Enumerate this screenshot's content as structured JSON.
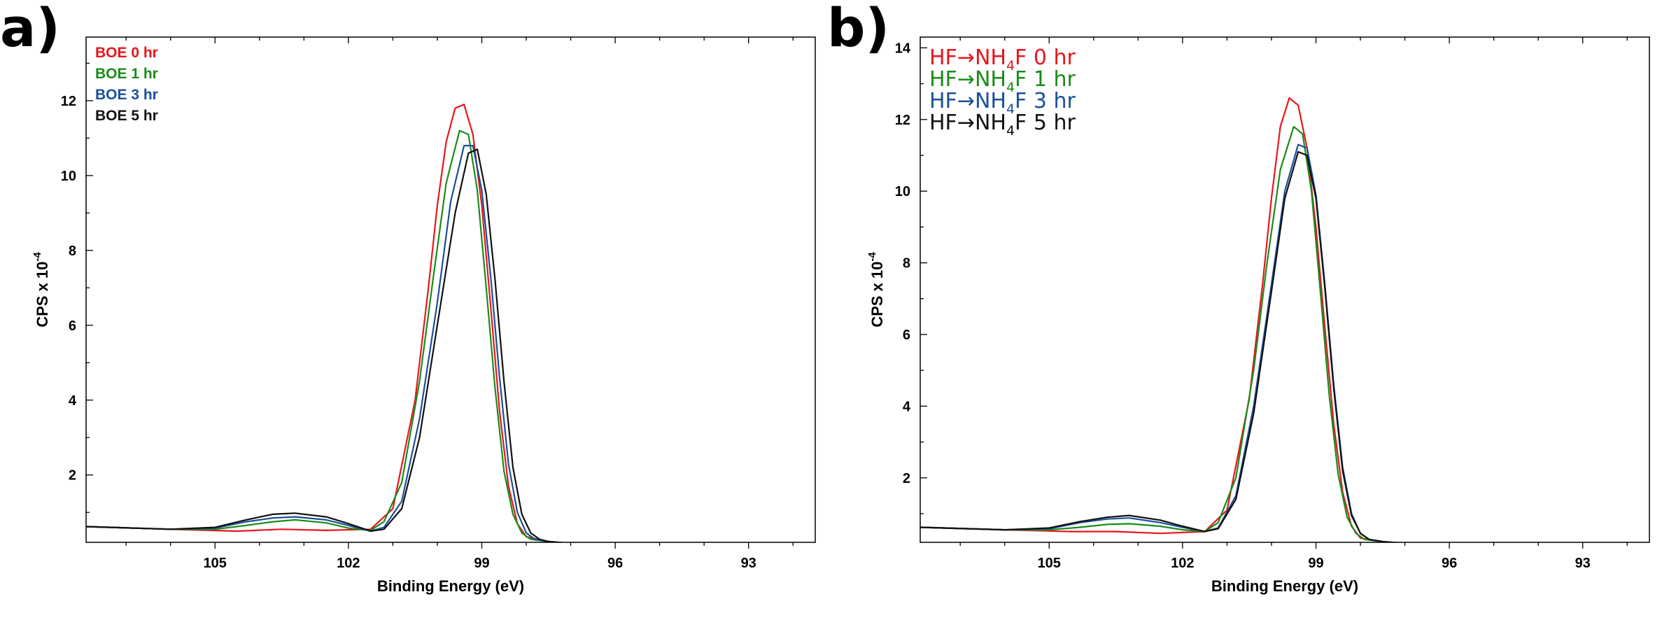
{
  "colors": {
    "red": "#e8161c",
    "green": "#1a8c1a",
    "blue": "#1b4f9c",
    "black": "#111111"
  },
  "chart_data": [
    {
      "panel_label": "a)",
      "type": "line",
      "xlabel": "Binding Energy (eV)",
      "ylabel": "CPS x 10",
      "ylabel_sup": "-4",
      "xlim": [
        107.9,
        91.5
      ],
      "ylim": [
        0.2,
        13.7
      ],
      "x_ticks": [
        "105",
        "102",
        "99",
        "96",
        "93"
      ],
      "y_ticks": [
        "2",
        "4",
        "6",
        "8",
        "10",
        "12"
      ],
      "grid": false,
      "legend_position": "top-left",
      "series": [
        {
          "name": "BOE 0 hr",
          "legend": {
            "pre": "BOE 0 hr",
            "sub": "",
            "post": ""
          },
          "color": "#e8161c",
          "x": [
            107.9,
            106,
            104.5,
            103.5,
            102.5,
            101.5,
            101,
            100.5,
            100.2,
            100,
            99.8,
            99.6,
            99.4,
            99.2,
            99,
            98.8,
            98.6,
            98.4,
            98.2,
            98,
            97.5,
            97,
            96.5,
            96,
            95,
            94.2
          ],
          "y": [
            0.62,
            0.55,
            0.5,
            0.55,
            0.52,
            0.55,
            1.1,
            4.0,
            7.0,
            9.2,
            10.9,
            11.8,
            11.9,
            11.1,
            9.2,
            6.5,
            3.7,
            1.7,
            0.7,
            0.35,
            0.22,
            0.17,
            0.13,
            0.11,
            0.1,
            0.1
          ]
        },
        {
          "name": "BOE 1 hr",
          "legend": {
            "pre": "BOE 1 hr",
            "sub": "",
            "post": ""
          },
          "color": "#1a8c1a",
          "x": [
            107.9,
            106,
            105,
            104.3,
            103.7,
            103.2,
            102.5,
            102,
            101.5,
            101.2,
            100.8,
            100.4,
            100.1,
            99.8,
            99.5,
            99.3,
            99.1,
            98.9,
            98.7,
            98.5,
            98.3,
            98.1,
            97.9,
            97.5,
            97,
            96,
            95,
            94.2
          ],
          "y": [
            0.62,
            0.55,
            0.55,
            0.65,
            0.75,
            0.8,
            0.72,
            0.58,
            0.52,
            0.75,
            1.8,
            4.5,
            7.2,
            9.8,
            11.2,
            11.1,
            9.6,
            7.0,
            4.3,
            2.1,
            0.95,
            0.45,
            0.28,
            0.22,
            0.17,
            0.12,
            0.1,
            0.1
          ]
        },
        {
          "name": "BOE 3 hr",
          "legend": {
            "pre": "BOE 3 hr",
            "sub": "",
            "post": ""
          },
          "color": "#1b4f9c",
          "x": [
            107.9,
            106,
            105,
            104.3,
            103.7,
            103.2,
            102.5,
            102,
            101.5,
            101.2,
            100.8,
            100.4,
            100,
            99.7,
            99.4,
            99.2,
            99,
            98.8,
            98.6,
            98.4,
            98.2,
            98,
            97.8,
            97.5,
            97,
            96,
            95,
            94.2
          ],
          "y": [
            0.62,
            0.55,
            0.58,
            0.75,
            0.85,
            0.88,
            0.8,
            0.65,
            0.5,
            0.6,
            1.3,
            3.5,
            6.6,
            9.3,
            10.8,
            10.8,
            9.6,
            7.3,
            4.6,
            2.3,
            1.0,
            0.45,
            0.28,
            0.22,
            0.17,
            0.12,
            0.1,
            0.1
          ]
        },
        {
          "name": "BOE 5 hr",
          "legend": {
            "pre": "BOE 5 hr",
            "sub": "",
            "post": ""
          },
          "color": "#111111",
          "x": [
            107.9,
            106,
            105,
            104.3,
            103.7,
            103.2,
            102.5,
            102,
            101.5,
            101.2,
            100.8,
            100.4,
            100,
            99.6,
            99.3,
            99.1,
            98.9,
            98.7,
            98.5,
            98.3,
            98.1,
            97.9,
            97.7,
            97.5,
            97,
            96,
            95,
            94.2
          ],
          "y": [
            0.62,
            0.55,
            0.6,
            0.8,
            0.95,
            0.98,
            0.88,
            0.7,
            0.5,
            0.55,
            1.1,
            3.0,
            6.0,
            9.0,
            10.6,
            10.7,
            9.5,
            7.2,
            4.5,
            2.2,
            0.95,
            0.45,
            0.28,
            0.22,
            0.17,
            0.12,
            0.1,
            0.1
          ]
        }
      ]
    },
    {
      "panel_label": "b)",
      "type": "line",
      "xlabel": "Binding Energy (eV)",
      "ylabel": "CPS x 10",
      "ylabel_sup": "-4",
      "xlim": [
        107.9,
        91.5
      ],
      "ylim": [
        0.2,
        14.3
      ],
      "x_ticks": [
        "105",
        "102",
        "99",
        "96",
        "93"
      ],
      "y_ticks": [
        "2",
        "4",
        "6",
        "8",
        "10",
        "12",
        "14"
      ],
      "grid": false,
      "legend_position": "top-left",
      "series": [
        {
          "name": "HF→NH4F 0 hr",
          "legend": {
            "pre": "HF→NH",
            "sub": "4",
            "post": "F 0 hr"
          },
          "color": "#e8161c",
          "x": [
            107.9,
            106,
            104.5,
            103.5,
            102.5,
            101.5,
            101,
            100.5,
            100.2,
            100,
            99.8,
            99.6,
            99.4,
            99.2,
            99,
            98.8,
            98.6,
            98.4,
            98.2,
            98,
            97.5,
            97,
            96.5,
            96,
            95,
            94.2
          ],
          "y": [
            0.62,
            0.55,
            0.5,
            0.5,
            0.45,
            0.5,
            1.1,
            4.2,
            7.4,
            9.8,
            11.8,
            12.6,
            12.4,
            11.2,
            9.0,
            6.2,
            3.5,
            1.6,
            0.65,
            0.32,
            0.22,
            0.16,
            0.13,
            0.11,
            0.1,
            0.1
          ]
        },
        {
          "name": "HF→NH4F 1 hr",
          "legend": {
            "pre": "HF→NH",
            "sub": "4",
            "post": "F 1 hr"
          },
          "color": "#1a8c1a",
          "x": [
            107.9,
            106,
            105,
            104.3,
            103.7,
            103.2,
            102.5,
            102,
            101.5,
            101.2,
            100.8,
            100.4,
            100.1,
            99.8,
            99.5,
            99.3,
            99.1,
            98.9,
            98.7,
            98.5,
            98.3,
            98.1,
            97.9,
            97.5,
            97,
            96,
            95,
            94.2
          ],
          "y": [
            0.62,
            0.55,
            0.55,
            0.62,
            0.7,
            0.72,
            0.65,
            0.55,
            0.5,
            0.75,
            2.0,
            5.0,
            8.0,
            10.6,
            11.8,
            11.6,
            10.0,
            7.2,
            4.3,
            2.1,
            0.9,
            0.45,
            0.28,
            0.22,
            0.17,
            0.12,
            0.1,
            0.1
          ]
        },
        {
          "name": "HF→NH4F 3 hr",
          "legend": {
            "pre": "HF→NH",
            "sub": "4",
            "post": "F 3 hr"
          },
          "color": "#1b4f9c",
          "x": [
            107.9,
            106,
            105,
            104.3,
            103.7,
            103.2,
            102.5,
            102,
            101.5,
            101.2,
            100.8,
            100.4,
            100,
            99.7,
            99.4,
            99.2,
            99,
            98.8,
            98.6,
            98.4,
            98.2,
            98,
            97.8,
            97.5,
            97,
            96,
            95,
            94.2
          ],
          "y": [
            0.62,
            0.55,
            0.58,
            0.75,
            0.85,
            0.88,
            0.75,
            0.62,
            0.5,
            0.6,
            1.5,
            4.0,
            7.4,
            10.0,
            11.3,
            11.2,
            9.9,
            7.4,
            4.6,
            2.3,
            1.0,
            0.45,
            0.28,
            0.22,
            0.17,
            0.12,
            0.1,
            0.1
          ]
        },
        {
          "name": "HF→NH4F 5 hr",
          "legend": {
            "pre": "HF→NH",
            "sub": "4",
            "post": "F 5 hr"
          },
          "color": "#111111",
          "x": [
            107.9,
            106,
            105,
            104.3,
            103.7,
            103.2,
            102.5,
            102,
            101.5,
            101.2,
            100.8,
            100.4,
            100,
            99.7,
            99.4,
            99.2,
            99,
            98.8,
            98.6,
            98.4,
            98.2,
            98,
            97.8,
            97.5,
            97,
            96,
            95,
            94.2
          ],
          "y": [
            0.62,
            0.55,
            0.6,
            0.78,
            0.9,
            0.95,
            0.82,
            0.65,
            0.5,
            0.58,
            1.4,
            3.8,
            7.2,
            9.8,
            11.1,
            11.0,
            9.8,
            7.3,
            4.5,
            2.2,
            0.95,
            0.45,
            0.28,
            0.22,
            0.17,
            0.12,
            0.1,
            0.1
          ]
        }
      ]
    }
  ]
}
